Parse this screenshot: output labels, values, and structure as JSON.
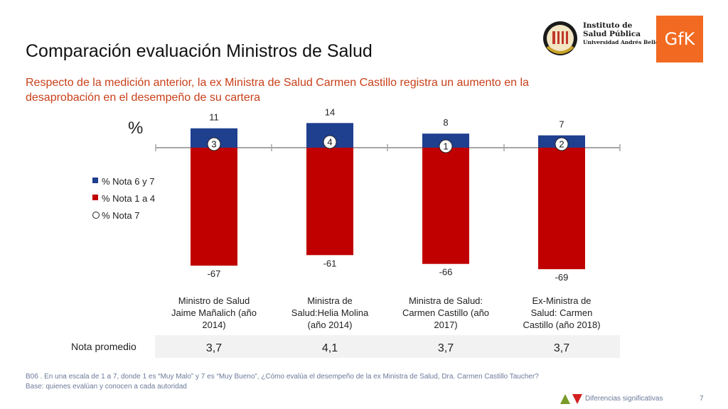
{
  "title": "Comparación evaluación Ministros de Salud",
  "subtitle": "Respecto de la medición anterior, la ex Ministra de Salud Carmen Castillo registra un aumento en la desaprobación en el desempeño de su cartera",
  "logos": {
    "isp_line1": "Instituto de",
    "isp_line2": "Salud Pública",
    "isp_line3": "Universidad Andrés Bello",
    "gfk": "GfK"
  },
  "colors": {
    "positive": "#1f3f8f",
    "negative": "#c00000",
    "accent": "#c8401a"
  },
  "chart_data": {
    "type": "bar",
    "ylabel": "%",
    "categories": [
      "Ministro de Salud Jaime Mañalich (año 2014)",
      "Ministra de Salud:Helia Molina (año 2014)",
      "Ministra de Salud: Carmen Castillo (año 2017)",
      "Ex-Ministra de Salud: Carmen Castillo (año 2018)"
    ],
    "series": [
      {
        "name": "% Nota 6 y 7",
        "values": [
          11,
          14,
          8,
          7
        ]
      },
      {
        "name": "% Nota 1 a 4",
        "values": [
          -67,
          -61,
          -66,
          -69
        ]
      },
      {
        "name": "% Nota 7",
        "values": [
          3,
          4,
          1,
          2
        ]
      }
    ],
    "ylim": [
      -72,
      16
    ],
    "legend": "left",
    "row_label": "Nota promedio",
    "row_values": [
      "3,7",
      "4,1",
      "3,7",
      "3,7"
    ]
  },
  "footnote": {
    "line1": "B06 .  En una escala de 1 a 7, donde 1 es “Muy Malo” y 7 es “Muy Bueno”, ¿Cómo evalúa el desempeño de la  ex Ministra de Salud, Dra. Carmen Castillo Taucher?",
    "line2": "Base: quienes evalúan y conocen a cada autoridad"
  },
  "sigdiff_label": "Diferencias significativas",
  "page_number": "7"
}
